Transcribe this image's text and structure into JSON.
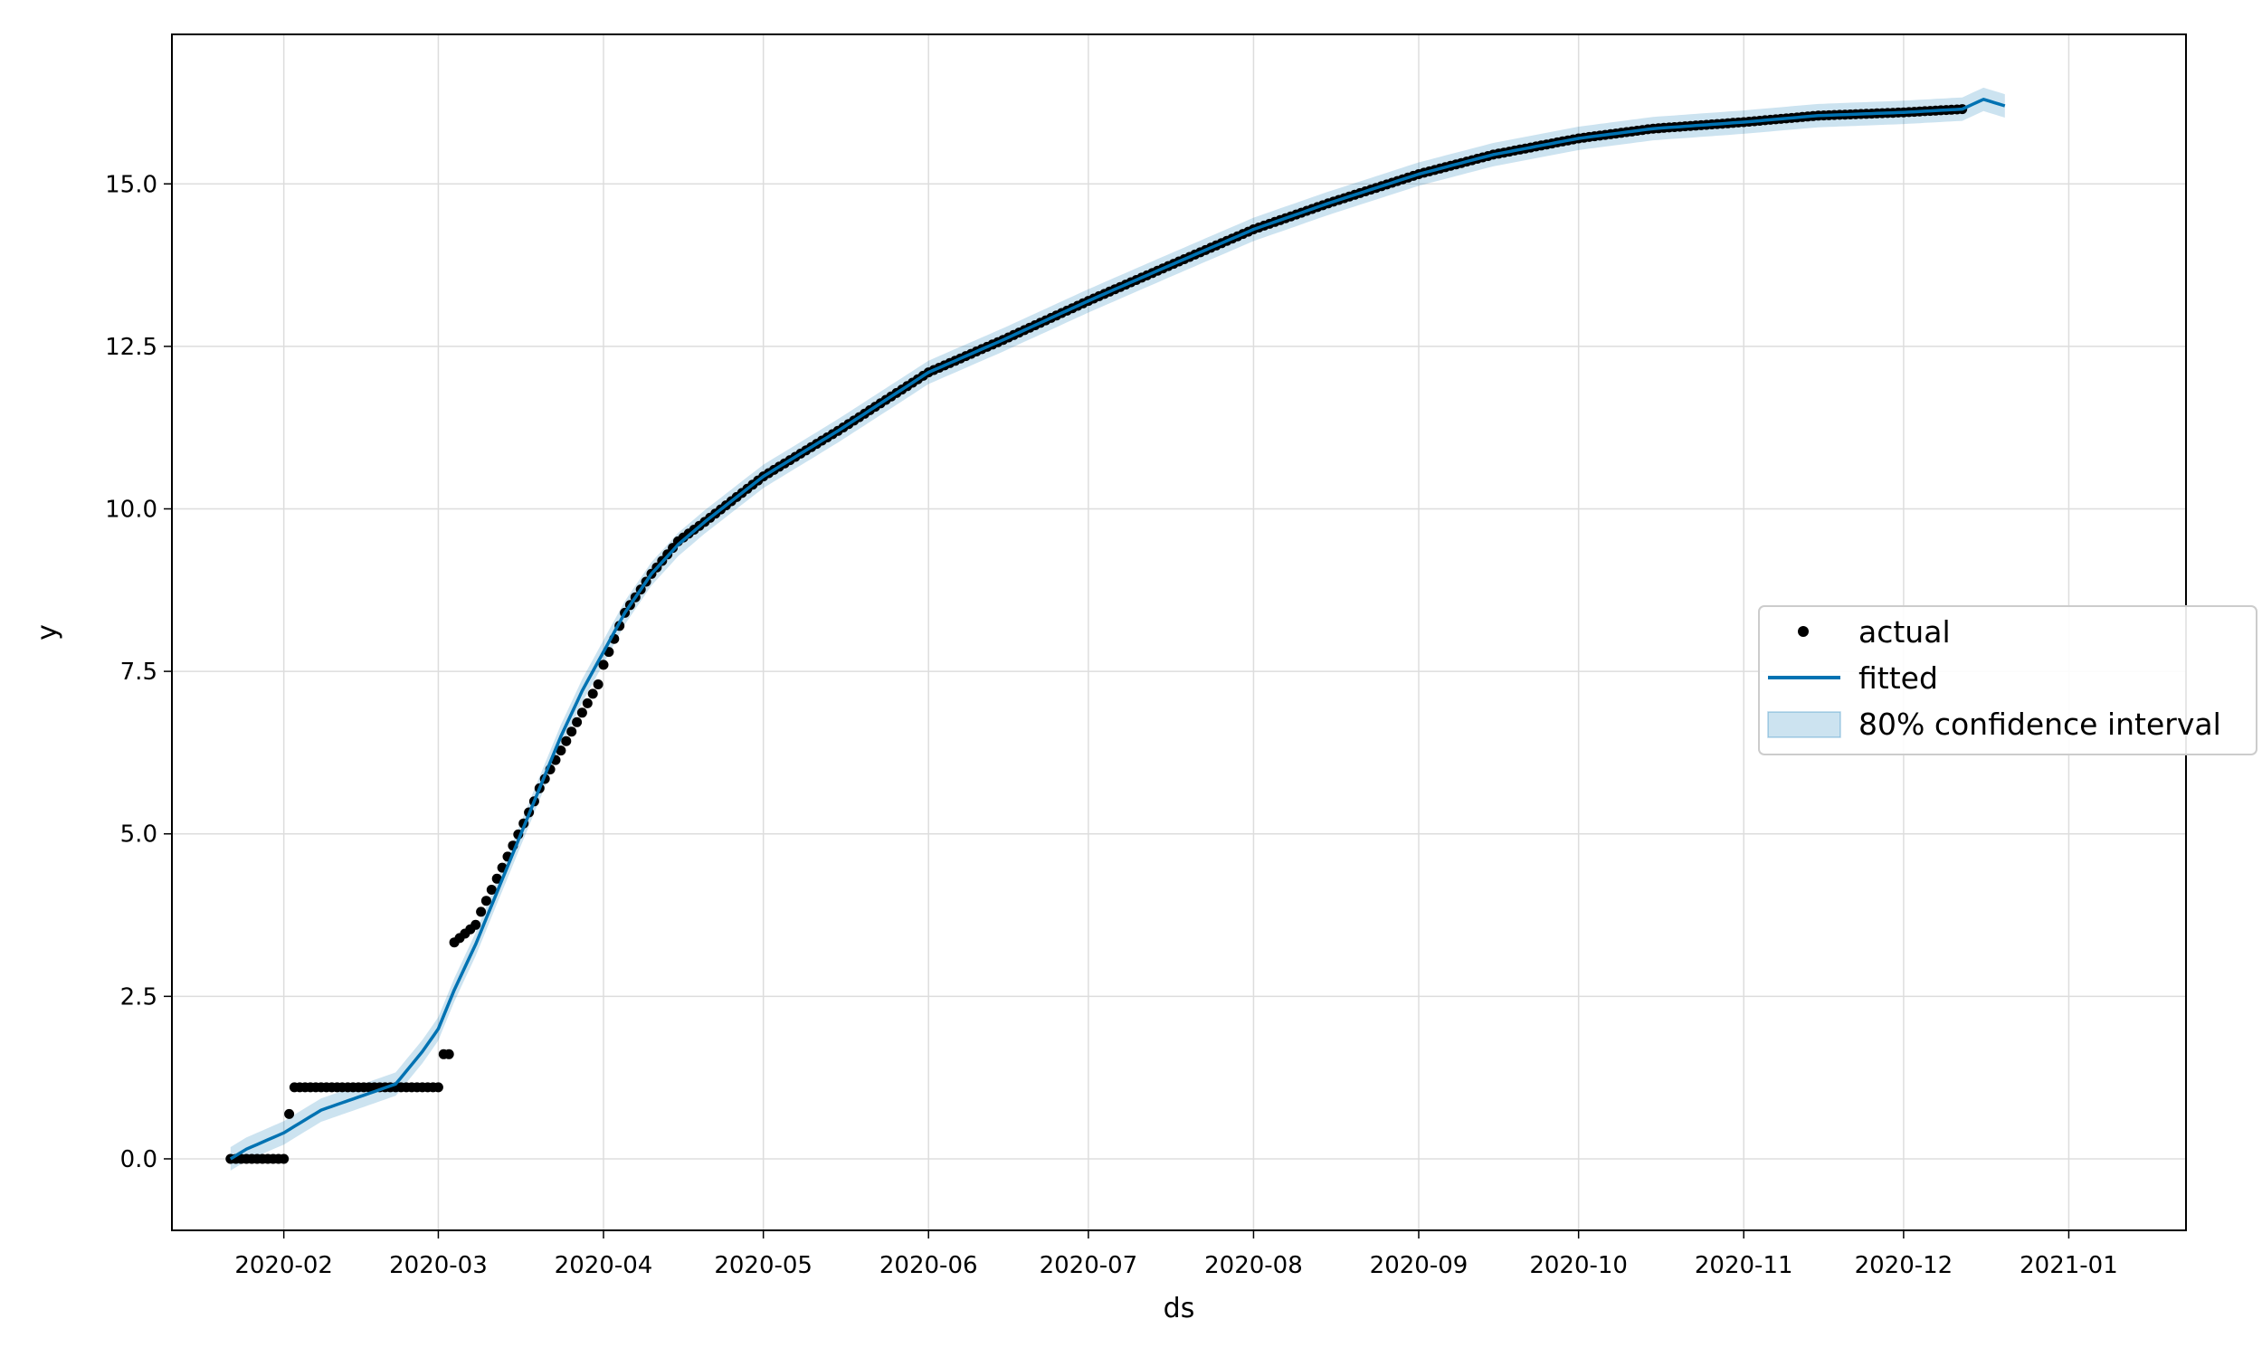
{
  "chart_data": {
    "type": "scatter+line",
    "title": "",
    "xlabel": "ds",
    "ylabel": "y",
    "x_ticks": [
      "2020-02",
      "2020-03",
      "2020-04",
      "2020-05",
      "2020-06",
      "2020-07",
      "2020-08",
      "2020-09",
      "2020-10",
      "2020-11",
      "2020-12",
      "2021-01"
    ],
    "y_ticks": [
      "0.0",
      "2.5",
      "5.0",
      "7.5",
      "10.0",
      "12.5",
      "15.0"
    ],
    "xlim": [
      "2021-01-11",
      "2021-01-23"
    ],
    "ylim": [
      -1.1,
      17.3
    ],
    "grid": true,
    "legend": {
      "placement": "center-right",
      "entries": [
        {
          "label": "actual",
          "kind": "marker"
        },
        {
          "label": "fitted",
          "kind": "line"
        },
        {
          "label": "80% confidence interval",
          "kind": "band"
        }
      ]
    },
    "colors": {
      "actual": "#000000",
      "fitted": "#0072B2",
      "interval_fill": "#0072B2",
      "interval_opacity": 0.2,
      "grid": "#dddddd"
    },
    "actual_segments": [
      {
        "start": "2020-01-22",
        "end": "2020-02-01",
        "from": 0.0,
        "to": 0.0
      },
      {
        "start": "2020-02-02",
        "end": "2020-02-02",
        "from": 0.69,
        "to": 0.69
      },
      {
        "start": "2020-02-03",
        "end": "2020-03-01",
        "from": 1.1,
        "to": 1.1
      },
      {
        "start": "2020-03-02",
        "end": "2020-03-03",
        "from": 1.61,
        "to": 1.61
      },
      {
        "start": "2020-03-04",
        "end": "2020-03-08",
        "from": 3.33,
        "to": 3.6
      },
      {
        "start": "2020-03-09",
        "end": "2020-03-19",
        "from": 3.8,
        "to": 5.5
      },
      {
        "start": "2020-03-20",
        "end": "2020-03-31",
        "from": 5.7,
        "to": 7.3
      }
    ],
    "actual_anchors": [
      [
        "2020-04-01",
        7.6
      ],
      [
        "2020-04-05",
        8.4
      ],
      [
        "2020-04-10",
        9.0
      ],
      [
        "2020-04-15",
        9.5
      ],
      [
        "2020-04-20",
        9.8
      ],
      [
        "2020-05-01",
        10.5
      ],
      [
        "2020-05-15",
        11.2
      ],
      [
        "2020-06-01",
        12.1
      ],
      [
        "2020-06-15",
        12.6
      ],
      [
        "2020-07-01",
        13.2
      ],
      [
        "2020-07-15",
        13.7
      ],
      [
        "2020-08-01",
        14.3
      ],
      [
        "2020-08-15",
        14.7
      ],
      [
        "2020-09-01",
        15.15
      ],
      [
        "2020-09-15",
        15.45
      ],
      [
        "2020-10-01",
        15.7
      ],
      [
        "2020-10-15",
        15.85
      ],
      [
        "2020-11-01",
        15.95
      ],
      [
        "2020-11-15",
        16.05
      ],
      [
        "2020-12-01",
        16.1
      ],
      [
        "2020-12-12",
        16.15
      ]
    ],
    "fitted_anchors": [
      [
        "2020-01-22",
        0.0
      ],
      [
        "2020-01-25",
        0.15
      ],
      [
        "2020-02-01",
        0.4
      ],
      [
        "2020-02-08",
        0.75
      ],
      [
        "2020-02-15",
        0.95
      ],
      [
        "2020-02-22",
        1.15
      ],
      [
        "2020-02-27",
        1.65
      ],
      [
        "2020-03-01",
        2.0
      ],
      [
        "2020-03-04",
        2.6
      ],
      [
        "2020-03-08",
        3.3
      ],
      [
        "2020-03-12",
        4.1
      ],
      [
        "2020-03-16",
        4.9
      ],
      [
        "2020-03-20",
        5.7
      ],
      [
        "2020-03-24",
        6.5
      ],
      [
        "2020-03-28",
        7.2
      ],
      [
        "2020-04-01",
        7.8
      ],
      [
        "2020-04-05",
        8.4
      ],
      [
        "2020-04-10",
        9.0
      ],
      [
        "2020-04-15",
        9.45
      ],
      [
        "2020-04-20",
        9.8
      ],
      [
        "2020-05-01",
        10.5
      ],
      [
        "2020-05-15",
        11.2
      ],
      [
        "2020-06-01",
        12.1
      ],
      [
        "2020-06-15",
        12.6
      ],
      [
        "2020-07-01",
        13.2
      ],
      [
        "2020-07-15",
        13.7
      ],
      [
        "2020-08-01",
        14.3
      ],
      [
        "2020-08-15",
        14.7
      ],
      [
        "2020-09-01",
        15.15
      ],
      [
        "2020-09-15",
        15.45
      ],
      [
        "2020-10-01",
        15.7
      ],
      [
        "2020-10-15",
        15.85
      ],
      [
        "2020-11-01",
        15.95
      ],
      [
        "2020-11-15",
        16.05
      ],
      [
        "2020-12-01",
        16.1
      ],
      [
        "2020-12-12",
        16.15
      ],
      [
        "2020-12-16",
        16.3
      ],
      [
        "2020-12-20",
        16.2
      ]
    ],
    "interval_halfwidth": 0.18
  }
}
